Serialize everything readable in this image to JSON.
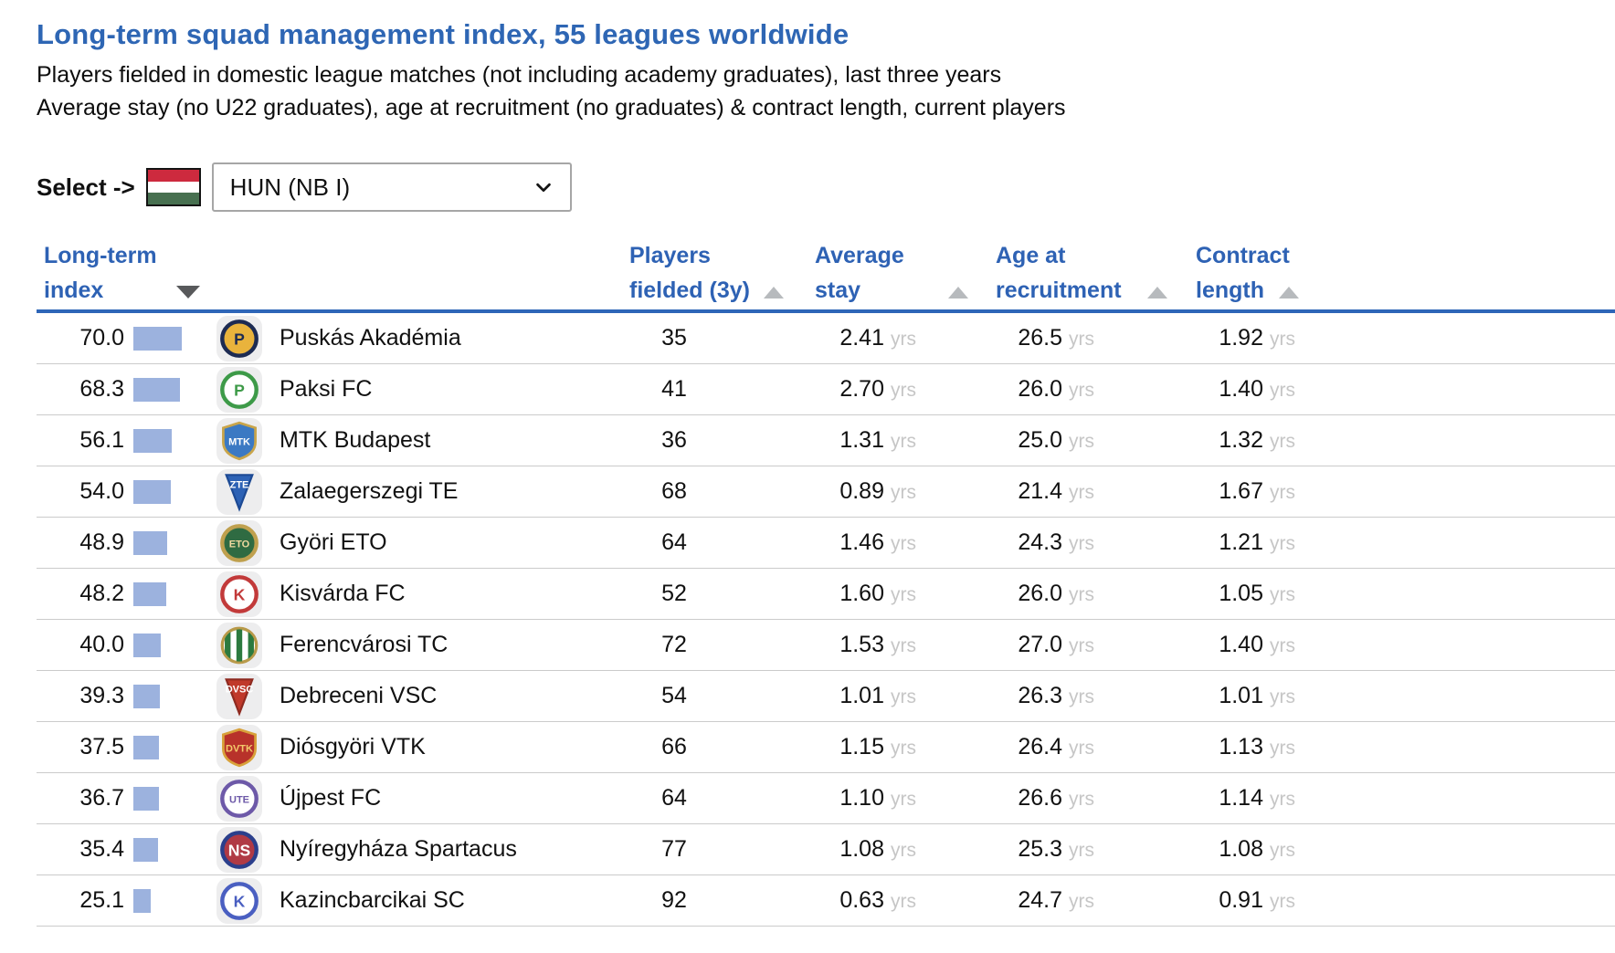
{
  "header": {
    "title": "Long-term squad management index, 55 leagues worldwide",
    "subtitle1": "Players fielded in domestic league matches (not including academy graduates), last three years",
    "subtitle2": "Average stay (no U22 graduates), age at recruitment (no graduates) & contract length, current players"
  },
  "selector": {
    "label": "Select ->",
    "flag_icon": "hungary-flag",
    "flag_colors": [
      "#cd2a3e",
      "#ffffff",
      "#477050"
    ],
    "selected_value": "HUN (NB I)",
    "chevron_icon": "chevron-down"
  },
  "table": {
    "columns": [
      {
        "line1": "Long-term",
        "line2": "index",
        "sort_icon": "triangle-down-dark",
        "sort_state": "sorted-desc"
      },
      {
        "line1": "Players",
        "line2": "fielded (3y)",
        "sort_icon": "triangle-up-gray",
        "sort_state": "unsorted"
      },
      {
        "line1": "Average",
        "line2": "stay",
        "sort_icon": "triangle-up-gray",
        "sort_state": "unsorted"
      },
      {
        "line1": "Age at",
        "line2": "recruitment",
        "sort_icon": "triangle-up-gray",
        "sort_state": "unsorted"
      },
      {
        "line1": "Contract",
        "line2": "length",
        "sort_icon": "triangle-up-gray",
        "sort_state": "unsorted"
      }
    ],
    "unit": "yrs",
    "rows": [
      {
        "index": "70.0",
        "club": "Puskás Akadémia",
        "players_fielded": "35",
        "average_stay": "2.41",
        "age_at_recruitment": "26.5",
        "contract_length": "1.92",
        "logo": {
          "shape": "circle",
          "bg": "#e9b33c",
          "ring": "#1d2b52",
          "fg": "#1d2b52",
          "text": "P"
        }
      },
      {
        "index": "68.3",
        "club": "Paksi FC",
        "players_fielded": "41",
        "average_stay": "2.70",
        "age_at_recruitment": "26.0",
        "contract_length": "1.40",
        "logo": {
          "shape": "circle",
          "bg": "#ffffff",
          "ring": "#3d9a48",
          "fg": "#3d9a48",
          "text": "P"
        }
      },
      {
        "index": "56.1",
        "club": "MTK Budapest",
        "players_fielded": "36",
        "average_stay": "1.31",
        "age_at_recruitment": "25.0",
        "contract_length": "1.32",
        "logo": {
          "shape": "shield",
          "bg": "#3b79c3",
          "ring": "#c9a54a",
          "fg": "#ffffff",
          "text": "MTK"
        }
      },
      {
        "index": "54.0",
        "club": "Zalaegerszegi TE",
        "players_fielded": "68",
        "average_stay": "0.89",
        "age_at_recruitment": "21.4",
        "contract_length": "1.67",
        "logo": {
          "shape": "pennant",
          "bg": "#2d62b5",
          "ring": "#1d4a94",
          "fg": "#ffffff",
          "text": "ZTE"
        }
      },
      {
        "index": "48.9",
        "club": "Györi ETO",
        "players_fielded": "64",
        "average_stay": "1.46",
        "age_at_recruitment": "24.3",
        "contract_length": "1.21",
        "logo": {
          "shape": "circle",
          "bg": "#2f6b42",
          "ring": "#bfa04e",
          "fg": "#f0d9a0",
          "text": "ETO"
        }
      },
      {
        "index": "48.2",
        "club": "Kisvárda FC",
        "players_fielded": "52",
        "average_stay": "1.60",
        "age_at_recruitment": "26.0",
        "contract_length": "1.05",
        "logo": {
          "shape": "circle",
          "bg": "#ffffff",
          "ring": "#c23a3a",
          "fg": "#c23a3a",
          "text": "K"
        }
      },
      {
        "index": "40.0",
        "club": "Ferencvárosi TC",
        "players_fielded": "72",
        "average_stay": "1.53",
        "age_at_recruitment": "27.0",
        "contract_length": "1.40",
        "logo": {
          "shape": "stripes",
          "bg": "#ffffff",
          "ring": "#b99a4a",
          "fg": "#2c7a3f",
          "text": ""
        }
      },
      {
        "index": "39.3",
        "club": "Debreceni VSC",
        "players_fielded": "54",
        "average_stay": "1.01",
        "age_at_recruitment": "26.3",
        "contract_length": "1.01",
        "logo": {
          "shape": "pennant",
          "bg": "#c0392b",
          "ring": "#8e2a20",
          "fg": "#ffffff",
          "text": "DVSC"
        }
      },
      {
        "index": "37.5",
        "club": "Diósgyöri VTK",
        "players_fielded": "66",
        "average_stay": "1.15",
        "age_at_recruitment": "26.4",
        "contract_length": "1.13",
        "logo": {
          "shape": "shield",
          "bg": "#b8322a",
          "ring": "#d8a13a",
          "fg": "#f3c96a",
          "text": "DVTK"
        }
      },
      {
        "index": "36.7",
        "club": "Újpest FC",
        "players_fielded": "64",
        "average_stay": "1.10",
        "age_at_recruitment": "26.6",
        "contract_length": "1.14",
        "logo": {
          "shape": "circle",
          "bg": "#ffffff",
          "ring": "#6d59a8",
          "fg": "#6d59a8",
          "text": "UTE"
        }
      },
      {
        "index": "35.4",
        "club": "Nyíregyháza Spartacus",
        "players_fielded": "77",
        "average_stay": "1.08",
        "age_at_recruitment": "25.3",
        "contract_length": "1.08",
        "logo": {
          "shape": "circle",
          "bg": "#b03a45",
          "ring": "#2b3f8c",
          "fg": "#ffffff",
          "text": "NS"
        }
      },
      {
        "index": "25.1",
        "club": "Kazincbarcikai SC",
        "players_fielded": "92",
        "average_stay": "0.63",
        "age_at_recruitment": "24.7",
        "contract_length": "0.91",
        "logo": {
          "shape": "circle",
          "bg": "#ffffff",
          "ring": "#4a5fc1",
          "fg": "#4a5fc1",
          "text": "K"
        }
      }
    ]
  },
  "colors": {
    "title_blue": "#2e66b4",
    "header_blue": "#2e62b4",
    "header_rule_blue": "#2e66b8",
    "bar_fill": "#9cb2de",
    "unit_gray": "#c6c6c6",
    "row_separator": "#cbcbcb",
    "sort_active": "#58595b",
    "sort_inactive": "#b7babd"
  }
}
